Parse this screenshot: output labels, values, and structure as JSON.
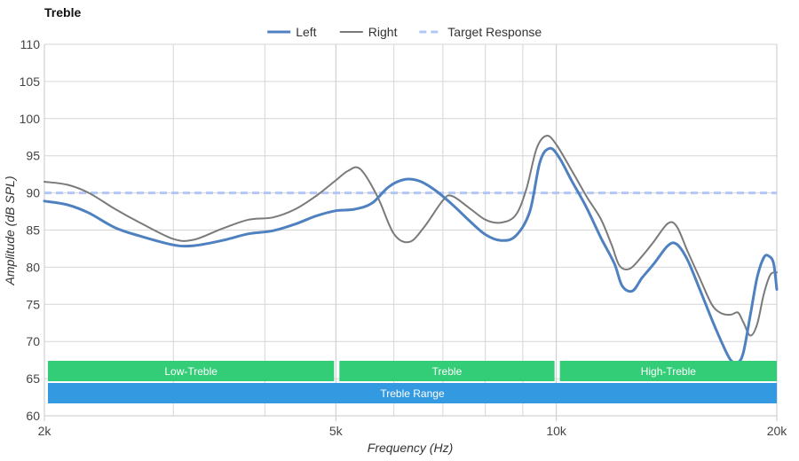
{
  "chart_data": {
    "type": "line",
    "title": "Treble",
    "xlabel": "Frequency (Hz)",
    "ylabel": "Amplitude (dB SPL)",
    "x_scale": "log",
    "xlim": [
      2000,
      20000
    ],
    "ylim": [
      60,
      110
    ],
    "x_ticks": [
      {
        "value": 2000,
        "label": "2k"
      },
      {
        "value": 5000,
        "label": "5k"
      },
      {
        "value": 10000,
        "label": "10k"
      },
      {
        "value": 20000,
        "label": "20k"
      }
    ],
    "x_minor_gridlines": [
      3000,
      4000,
      6000,
      7000,
      8000,
      9000
    ],
    "y_ticks": [
      60,
      65,
      70,
      75,
      80,
      85,
      90,
      95,
      100,
      105,
      110
    ],
    "grid": true,
    "legend_position": "top-center",
    "series": [
      {
        "name": "Left",
        "color": "#4f81c0",
        "style": "solid",
        "points": [
          [
            2000,
            88.9
          ],
          [
            2150,
            88.4
          ],
          [
            2300,
            87.3
          ],
          [
            2500,
            85.3
          ],
          [
            2700,
            84.2
          ],
          [
            3000,
            83.0
          ],
          [
            3200,
            82.9
          ],
          [
            3500,
            83.6
          ],
          [
            3800,
            84.5
          ],
          [
            4100,
            84.9
          ],
          [
            4400,
            85.8
          ],
          [
            4700,
            86.9
          ],
          [
            5000,
            87.6
          ],
          [
            5300,
            87.8
          ],
          [
            5600,
            88.6
          ],
          [
            5900,
            90.8
          ],
          [
            6200,
            91.8
          ],
          [
            6500,
            91.6
          ],
          [
            6800,
            90.5
          ],
          [
            7200,
            88.5
          ],
          [
            7600,
            86.3
          ],
          [
            8000,
            84.4
          ],
          [
            8400,
            83.6
          ],
          [
            8800,
            84.2
          ],
          [
            9200,
            87.5
          ],
          [
            9500,
            94.2
          ],
          [
            9800,
            96.0
          ],
          [
            10100,
            94.7
          ],
          [
            10500,
            91.6
          ],
          [
            11000,
            88.0
          ],
          [
            11500,
            84.0
          ],
          [
            12000,
            80.5
          ],
          [
            12300,
            77.5
          ],
          [
            12700,
            76.8
          ],
          [
            13100,
            78.6
          ],
          [
            13600,
            80.5
          ],
          [
            14200,
            82.9
          ],
          [
            14600,
            83.1
          ],
          [
            15100,
            81.0
          ],
          [
            15700,
            77.0
          ],
          [
            16300,
            73.0
          ],
          [
            16800,
            70.0
          ],
          [
            17300,
            67.5
          ],
          [
            17700,
            67.2
          ],
          [
            18000,
            68.5
          ],
          [
            18400,
            73.5
          ],
          [
            18800,
            78.6
          ],
          [
            19200,
            81.3
          ],
          [
            19500,
            81.5
          ],
          [
            19800,
            80.5
          ],
          [
            20000,
            77.0
          ]
        ]
      },
      {
        "name": "Right",
        "color": "#7a7a7a",
        "style": "solid",
        "points": [
          [
            2000,
            91.5
          ],
          [
            2150,
            91.1
          ],
          [
            2300,
            90.0
          ],
          [
            2500,
            87.8
          ],
          [
            2700,
            86.0
          ],
          [
            3000,
            83.8
          ],
          [
            3200,
            83.7
          ],
          [
            3500,
            85.2
          ],
          [
            3800,
            86.4
          ],
          [
            4100,
            86.7
          ],
          [
            4400,
            87.8
          ],
          [
            4700,
            89.6
          ],
          [
            5000,
            91.7
          ],
          [
            5200,
            93.0
          ],
          [
            5400,
            93.2
          ],
          [
            5700,
            89.5
          ],
          [
            6000,
            84.5
          ],
          [
            6300,
            83.4
          ],
          [
            6600,
            85.4
          ],
          [
            7000,
            89.0
          ],
          [
            7200,
            89.6
          ],
          [
            7600,
            88.0
          ],
          [
            8000,
            86.4
          ],
          [
            8400,
            86.0
          ],
          [
            8800,
            87.0
          ],
          [
            9100,
            90.5
          ],
          [
            9400,
            96.0
          ],
          [
            9700,
            97.7
          ],
          [
            10000,
            96.5
          ],
          [
            10500,
            93.0
          ],
          [
            11000,
            89.5
          ],
          [
            11500,
            86.5
          ],
          [
            11900,
            83.0
          ],
          [
            12200,
            80.2
          ],
          [
            12600,
            79.8
          ],
          [
            13100,
            81.5
          ],
          [
            13600,
            83.5
          ],
          [
            14200,
            85.9
          ],
          [
            14600,
            85.5
          ],
          [
            15100,
            82.2
          ],
          [
            15700,
            78.5
          ],
          [
            16300,
            75.0
          ],
          [
            16800,
            73.8
          ],
          [
            17300,
            73.6
          ],
          [
            17700,
            73.9
          ],
          [
            18000,
            72.6
          ],
          [
            18400,
            70.8
          ],
          [
            18800,
            72.3
          ],
          [
            19200,
            76.4
          ],
          [
            19600,
            79.0
          ],
          [
            20000,
            79.3
          ]
        ]
      },
      {
        "name": "Target Response",
        "color": "#b3c7f7",
        "style": "dashed",
        "points": [
          [
            2000,
            90
          ],
          [
            20000,
            90
          ]
        ]
      }
    ],
    "bands": [
      {
        "label": "Low-Treble",
        "from": 2000,
        "to": 5000,
        "color": "#33cc77",
        "row": 1
      },
      {
        "label": "Treble",
        "from": 5000,
        "to": 10000,
        "color": "#33cc77",
        "row": 1
      },
      {
        "label": "High-Treble",
        "from": 10000,
        "to": 20000,
        "color": "#33cc77",
        "row": 1
      },
      {
        "label": "Treble Range",
        "from": 2000,
        "to": 20000,
        "color": "#3399e0",
        "row": 2
      }
    ]
  }
}
